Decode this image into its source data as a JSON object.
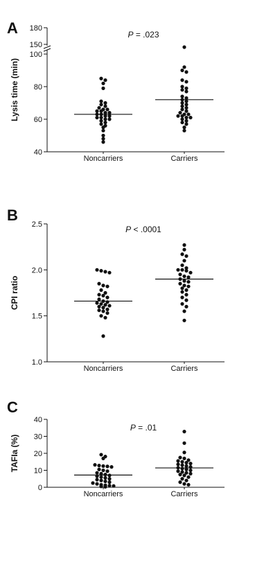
{
  "chart_data": [
    {
      "type": "scatter",
      "panel": "A",
      "ylabel": "Lysis time (min)",
      "categories": [
        "Noncarriers",
        "Carriers"
      ],
      "ylim": [
        40,
        180
      ],
      "y_ticks": [
        "40",
        "60",
        "80",
        "100",
        "150",
        "180"
      ],
      "axis_break": [
        100,
        150
      ],
      "annotation": {
        "label": "P",
        "text": " = .023"
      },
      "series": [
        {
          "category": "Noncarriers",
          "mean": 63,
          "values": [
            85,
            84,
            82,
            79,
            71,
            70,
            69,
            68,
            67,
            66,
            66,
            65,
            65,
            64,
            64,
            63,
            63,
            62,
            62,
            61,
            61,
            60,
            60,
            59,
            58,
            57,
            56,
            55,
            53,
            50,
            48,
            46
          ]
        },
        {
          "category": "Carriers",
          "mean": 72,
          "values": [
            145,
            92,
            90,
            89,
            84,
            83,
            80,
            79,
            78,
            77,
            74,
            73,
            72,
            71,
            70,
            69,
            68,
            67,
            66,
            65,
            64,
            63,
            63,
            62,
            62,
            61,
            61,
            60,
            59,
            58,
            57,
            55,
            53
          ]
        }
      ]
    },
    {
      "type": "scatter",
      "panel": "B",
      "ylabel": "CPI ratio",
      "categories": [
        "Noncarriers",
        "Carriers"
      ],
      "ylim": [
        1.0,
        2.5
      ],
      "y_ticks": [
        "1.0",
        "1.5",
        "2.0",
        "2.5"
      ],
      "annotation": {
        "label": "P",
        "text": " < .0001"
      },
      "series": [
        {
          "category": "Noncarriers",
          "mean": 1.66,
          "values": [
            2.0,
            1.99,
            1.98,
            1.97,
            1.85,
            1.83,
            1.82,
            1.78,
            1.75,
            1.73,
            1.72,
            1.7,
            1.68,
            1.66,
            1.65,
            1.64,
            1.63,
            1.62,
            1.61,
            1.6,
            1.59,
            1.57,
            1.56,
            1.55,
            1.53,
            1.5,
            1.48,
            1.28
          ]
        },
        {
          "category": "Carriers",
          "mean": 1.9,
          "values": [
            2.27,
            2.22,
            2.17,
            2.15,
            2.1,
            2.05,
            2.02,
            2.0,
            2.0,
            1.99,
            1.97,
            1.95,
            1.93,
            1.92,
            1.9,
            1.88,
            1.87,
            1.85,
            1.83,
            1.82,
            1.8,
            1.78,
            1.76,
            1.73,
            1.7,
            1.67,
            1.63,
            1.6,
            1.55,
            1.45
          ]
        }
      ]
    },
    {
      "type": "scatter",
      "panel": "C",
      "ylabel": "TAFIa (%)",
      "categories": [
        "Noncarriers",
        "Carriers"
      ],
      "ylim": [
        0,
        40
      ],
      "y_ticks": [
        "0",
        "10",
        "20",
        "30",
        "40"
      ],
      "annotation": {
        "label": "P",
        "text": " = .01"
      },
      "series": [
        {
          "category": "Noncarriers",
          "mean": 7.2,
          "values": [
            19.2,
            18.1,
            17.0,
            13.2,
            12.8,
            12.5,
            12.3,
            12.0,
            10.5,
            10.0,
            9.5,
            8.5,
            8.0,
            7.5,
            7.0,
            6.5,
            6.0,
            5.5,
            5.0,
            4.5,
            4.0,
            3.5,
            3.0,
            2.5,
            2.0,
            1.5,
            1.2,
            1.0,
            0.8,
            0.5,
            0.3
          ]
        },
        {
          "category": "Carriers",
          "mean": 11.4,
          "values": [
            32.8,
            26.0,
            20.5,
            17.5,
            17.0,
            16.0,
            15.5,
            15.0,
            14.5,
            14.0,
            13.5,
            13.0,
            12.5,
            12.0,
            11.5,
            11.0,
            10.5,
            10.0,
            9.5,
            9.0,
            8.5,
            8.0,
            7.5,
            7.0,
            6.0,
            5.0,
            4.0,
            3.0,
            2.0,
            1.5
          ]
        }
      ]
    }
  ]
}
